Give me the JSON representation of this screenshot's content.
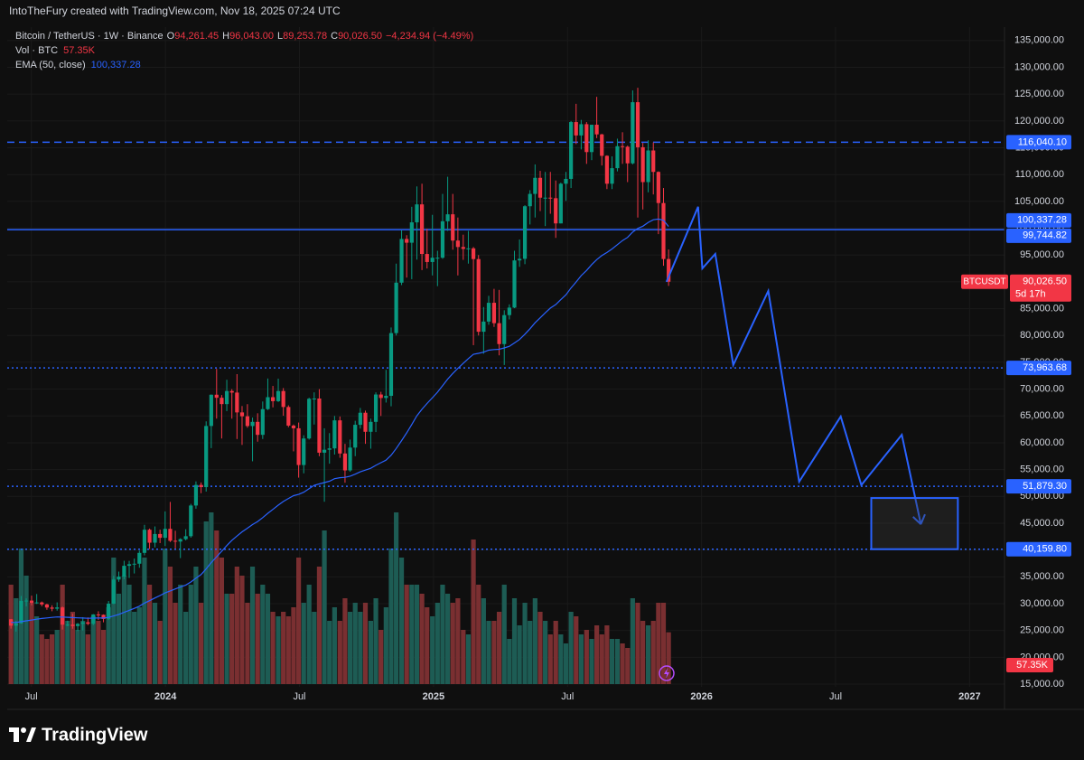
{
  "header": {
    "credit": "IntoTheFury created with TradingView.com, Nov 18, 2025 07:24 UTC"
  },
  "footer": {
    "brand": "TradingView"
  },
  "chart_data": {
    "type": "candlestick",
    "symbol": "Bitcoin / TetherUS · 1W · Binance",
    "ohlc": [
      {
        "key": "O",
        "value": "94,261.45"
      },
      {
        "key": "H",
        "value": "96,043.00"
      },
      {
        "key": "L",
        "value": "89,253.78"
      },
      {
        "key": "C",
        "value": "90,026.50"
      }
    ],
    "change": "−4,234.94 (−4.49%)",
    "up_color": "#089981",
    "down_color": "#f23645",
    "x": [
      2023.424,
      2023.443,
      2023.462,
      2023.481,
      2023.501,
      2023.52,
      2023.539,
      2023.558,
      2023.577,
      2023.596,
      2023.616,
      2023.635,
      2023.654,
      2023.673,
      2023.692,
      2023.711,
      2023.731,
      2023.75,
      2023.769,
      2023.788,
      2023.807,
      2023.826,
      2023.846,
      2023.865,
      2023.884,
      2023.903,
      2023.922,
      2023.941,
      2023.961,
      2023.98,
      2023.999,
      2024.018,
      2024.037,
      2024.056,
      2024.076,
      2024.095,
      2024.114,
      2024.133,
      2024.152,
      2024.171,
      2024.191,
      2024.21,
      2024.229,
      2024.248,
      2024.267,
      2024.286,
      2024.306,
      2024.325,
      2024.344,
      2024.363,
      2024.382,
      2024.401,
      2024.421,
      2024.44,
      2024.459,
      2024.478,
      2024.497,
      2024.516,
      2024.536,
      2024.555,
      2024.574,
      2024.593,
      2024.612,
      2024.631,
      2024.651,
      2024.67,
      2024.689,
      2024.708,
      2024.727,
      2024.746,
      2024.766,
      2024.785,
      2024.804,
      2024.823,
      2024.842,
      2024.861,
      2024.881,
      2024.9,
      2024.919,
      2024.938,
      2024.957,
      2024.976,
      2024.996,
      2025.015,
      2025.034,
      2025.053,
      2025.072,
      2025.091,
      2025.111,
      2025.13,
      2025.149,
      2025.168,
      2025.187,
      2025.206,
      2025.226,
      2025.245,
      2025.264,
      2025.283,
      2025.302,
      2025.321,
      2025.341,
      2025.36,
      2025.379,
      2025.398,
      2025.417,
      2025.436,
      2025.456,
      2025.475,
      2025.494,
      2025.513,
      2025.532,
      2025.551,
      2025.571,
      2025.59,
      2025.609,
      2025.628,
      2025.647,
      2025.666,
      2025.686,
      2025.705,
      2025.724,
      2025.743,
      2025.762,
      2025.781,
      2025.801,
      2025.82,
      2025.839,
      2025.858,
      2025.877
    ],
    "open": [
      27100,
      25900,
      26340,
      30540,
      30580,
      30160,
      30230,
      29860,
      29280,
      29060,
      29300,
      26090,
      26090,
      25830,
      26230,
      26530,
      26250,
      27990,
      27930,
      27150,
      30000,
      34500,
      35040,
      37060,
      37360,
      37450,
      39470,
      43790,
      41370,
      42990,
      42280,
      43950,
      41730,
      41580,
      42030,
      42580,
      48300,
      52140,
      51730,
      63130,
      68960,
      68390,
      67210,
      69650,
      69360,
      65660,
      64940,
      63120,
      63900,
      61480,
      66270,
      68500,
      67760,
      69650,
      66670,
      63200,
      62700,
      55850,
      60800,
      68200,
      68250,
      58150,
      58700,
      58950,
      64180,
      58000,
      54850,
      59100,
      63350,
      65600,
      62050,
      63900,
      69000,
      68350,
      68750,
      80450,
      89850,
      98000,
      97300,
      101100,
      104450,
      95200,
      93700,
      94500,
      94500,
      101300,
      102600,
      97700,
      96500,
      96150,
      96250,
      94250,
      80700,
      82600,
      86100,
      82300,
      78400,
      83800,
      85200,
      94000,
      94300,
      104100,
      106400,
      109400,
      105700,
      105700,
      105600,
      100900,
      108300,
      109200,
      119800,
      117300,
      119400,
      114200,
      119300,
      117500,
      113500,
      108300,
      111200,
      115300,
      115200,
      112100,
      123500,
      115100,
      108600,
      114500,
      110500,
      104700,
      94261.45
    ],
    "high": [
      27150,
      26800,
      31430,
      31000,
      31500,
      31800,
      30400,
      29990,
      29700,
      30250,
      29460,
      26830,
      28140,
      26400,
      27480,
      27440,
      28050,
      28580,
      28000,
      30500,
      35200,
      35980,
      38000,
      37980,
      38420,
      39900,
      44700,
      44000,
      44400,
      43800,
      47200,
      48970,
      43600,
      42200,
      43880,
      48600,
      52800,
      52600,
      64000,
      69000,
      73780,
      68900,
      71750,
      70000,
      72800,
      66850,
      67200,
      64700,
      65500,
      67700,
      71980,
      70600,
      71950,
      70200,
      66980,
      63400,
      63770,
      61400,
      68400,
      69400,
      70000,
      62700,
      61800,
      65000,
      64900,
      59800,
      60600,
      64100,
      66500,
      66000,
      64500,
      69400,
      69500,
      73600,
      81500,
      93400,
      99600,
      98700,
      104000,
      107800,
      108300,
      99900,
      102500,
      95800,
      106400,
      109600,
      106400,
      102000,
      98800,
      99500,
      96500,
      95000,
      85300,
      87400,
      88700,
      88500,
      84700,
      85800,
      95800,
      97900,
      104300,
      107100,
      111900,
      110700,
      110500,
      110500,
      108900,
      108500,
      110500,
      120000,
      123200,
      120200,
      119800,
      119300,
      124500,
      117600,
      113600,
      113400,
      116700,
      117900,
      115400,
      125700,
      126200,
      115900,
      116400,
      116000,
      110600,
      107500,
      96043
    ],
    "low": [
      25350,
      24800,
      26250,
      29500,
      29700,
      29950,
      29520,
      28860,
      28590,
      28700,
      25170,
      25800,
      25330,
      24900,
      25000,
      26000,
      26000,
      26970,
      26530,
      26950,
      29900,
      34080,
      34530,
      34800,
      35630,
      36700,
      39000,
      40200,
      40500,
      41300,
      40750,
      41500,
      40300,
      38500,
      41800,
      42300,
      47700,
      50600,
      50900,
      59000,
      64500,
      60800,
      65900,
      64500,
      60700,
      59600,
      62800,
      56550,
      60200,
      60700,
      66100,
      66600,
      67600,
      65050,
      62900,
      58400,
      53500,
      54300,
      60600,
      63400,
      57500,
      49000,
      56100,
      57800,
      57200,
      52550,
      54600,
      57500,
      62650,
      59800,
      58900,
      62000,
      65000,
      67500,
      66800,
      80000,
      89400,
      90800,
      90500,
      94150,
      92200,
      92500,
      91200,
      89200,
      94300,
      99500,
      96000,
      91200,
      94100,
      93400,
      78200,
      80000,
      76600,
      82000,
      81600,
      76300,
      74500,
      83000,
      85100,
      92800,
      93300,
      100700,
      102000,
      103200,
      100400,
      102700,
      98200,
      100900,
      105100,
      107500,
      115700,
      114700,
      112000,
      112700,
      116800,
      111700,
      107300,
      107300,
      110600,
      112000,
      108600,
      111900,
      102000,
      103500,
      106700,
      106300,
      98900,
      93000,
      89253.78
    ],
    "close": [
      25900,
      26340,
      30540,
      30580,
      30160,
      30230,
      29860,
      29280,
      29060,
      29300,
      26090,
      26090,
      25830,
      26230,
      26530,
      26250,
      27990,
      27930,
      27150,
      30000,
      34500,
      35040,
      37060,
      37360,
      37450,
      39470,
      43790,
      41370,
      42990,
      42280,
      43950,
      41730,
      41580,
      42030,
      42580,
      48300,
      52140,
      51730,
      63130,
      68960,
      68390,
      67210,
      69650,
      69360,
      65660,
      64940,
      63120,
      63900,
      61480,
      66270,
      68500,
      67760,
      69650,
      66670,
      63200,
      62700,
      55850,
      60800,
      68200,
      68250,
      58150,
      58700,
      58950,
      64180,
      58000,
      54850,
      59100,
      63350,
      65600,
      62050,
      63900,
      69000,
      68350,
      68750,
      80450,
      89850,
      98000,
      97300,
      101100,
      104450,
      95200,
      93700,
      94500,
      94500,
      101300,
      102600,
      97700,
      96500,
      96150,
      96250,
      94250,
      80700,
      82600,
      86100,
      82300,
      78400,
      83800,
      85200,
      94000,
      94300,
      104100,
      106400,
      109400,
      105700,
      105700,
      105600,
      100900,
      108300,
      109200,
      119800,
      117300,
      119400,
      114200,
      119300,
      117500,
      113500,
      108300,
      111200,
      115300,
      115200,
      112100,
      123500,
      115100,
      108600,
      114500,
      110500,
      104700,
      94261.45,
      90026.5
    ],
    "volume": {
      "name": "Vol · BTC",
      "last_label": "57.35K",
      "up_color": "#1d5c54",
      "down_color": "#7a2f31",
      "values": [
        110,
        95,
        150,
        120,
        90,
        75,
        55,
        50,
        55,
        60,
        110,
        70,
        80,
        60,
        70,
        55,
        75,
        70,
        60,
        85,
        140,
        100,
        120,
        110,
        80,
        85,
        140,
        110,
        90,
        70,
        150,
        130,
        90,
        110,
        80,
        110,
        130,
        90,
        180,
        190,
        170,
        140,
        100,
        100,
        130,
        120,
        90,
        130,
        100,
        110,
        100,
        80,
        75,
        80,
        75,
        85,
        140,
        90,
        110,
        80,
        130,
        170,
        70,
        85,
        70,
        95,
        80,
        90,
        80,
        90,
        70,
        95,
        60,
        85,
        150,
        190,
        140,
        110,
        110,
        110,
        100,
        85,
        75,
        90,
        110,
        100,
        90,
        95,
        60,
        55,
        160,
        110,
        95,
        70,
        70,
        80,
        110,
        50,
        95,
        65,
        90,
        70,
        95,
        80,
        70,
        55,
        70,
        55,
        45,
        80,
        75,
        55,
        60,
        50,
        65,
        55,
        65,
        50,
        50,
        45,
        40,
        95,
        90,
        70,
        65,
        70,
        90,
        90,
        57.35
      ]
    },
    "ema": {
      "name": "EMA (50, close)",
      "color": "#2962ff",
      "last_label": "100,337.28",
      "values": [
        26500,
        26500,
        26650,
        26800,
        26950,
        27100,
        27230,
        27340,
        27440,
        27530,
        27500,
        27450,
        27400,
        27360,
        27330,
        27280,
        27310,
        27340,
        27330,
        27440,
        27710,
        28000,
        28380,
        28760,
        29120,
        29530,
        30100,
        30560,
        31060,
        31510,
        32000,
        32380,
        32740,
        33110,
        33470,
        34050,
        34760,
        35420,
        36490,
        37650,
        38750,
        39780,
        40830,
        41820,
        42600,
        43390,
        44070,
        44750,
        45310,
        46050,
        46850,
        47580,
        48370,
        49050,
        49620,
        50140,
        50370,
        50770,
        51440,
        52080,
        52320,
        52580,
        52830,
        53300,
        53490,
        53550,
        53770,
        54140,
        54590,
        54900,
        55250,
        55790,
        56280,
        56760,
        57690,
        58940,
        60420,
        61840,
        63390,
        65030,
        66240,
        67330,
        68400,
        69430,
        70640,
        71880,
        72920,
        73880,
        74800,
        75700,
        76500,
        76670,
        76900,
        77260,
        77380,
        77430,
        77680,
        77980,
        78620,
        79250,
        80240,
        81260,
        82370,
        83300,
        84220,
        85110,
        85770,
        86680,
        87590,
        88850,
        89990,
        91160,
        92120,
        93220,
        94150,
        94910,
        95470,
        96140,
        96950,
        97710,
        98300,
        99310,
        99960,
        100380,
        101090,
        101580,
        101720,
        101480,
        100337.28
      ]
    },
    "last_price": {
      "tag": "BTCUSDT",
      "value": 90026.5,
      "label": "90,026.50",
      "countdown": "5d 17h",
      "color": "#f23645"
    },
    "levels": [
      {
        "value": 116040.1,
        "label": "116,040.10",
        "style": "dashed"
      },
      {
        "value": 99744.82,
        "label": "99,744.82",
        "style": "solid"
      },
      {
        "value": 73963.68,
        "label": "73,963.68",
        "style": "dotted"
      },
      {
        "value": 51879.3,
        "label": "51,879.30",
        "style": "dotted"
      },
      {
        "value": 40159.8,
        "label": "40,159.80",
        "style": "dotted"
      }
    ],
    "level_color": "#2962ff",
    "projection": {
      "color": "#2962ff",
      "x": [
        2025.869,
        2025.987,
        2026.003,
        2026.051,
        2026.118,
        2026.249,
        2026.364,
        2026.519,
        2026.596,
        2026.747,
        2026.818
      ],
      "values": [
        90000,
        104000,
        92500,
        95200,
        74500,
        88300,
        52750,
        64900,
        52100,
        61500,
        44800
      ]
    },
    "target_box": {
      "x": [
        2026.633,
        2026.956
      ],
      "y": [
        40159.8,
        49700
      ]
    },
    "xlim": [
      2023.41,
      2027.13
    ],
    "xticks": [
      {
        "value": 2023.5,
        "label": "Jul"
      },
      2024,
      {
        "value": 2024.5,
        "label": "Jul"
      },
      2025,
      {
        "value": 2025.5,
        "label": "Jul"
      },
      2026,
      {
        "value": 2026.5,
        "label": "Jul"
      },
      2027
    ],
    "ylim": [
      14500,
      137500
    ],
    "yticks": [
      {
        "value": 15000,
        "label": "15,000.00"
      },
      {
        "value": 20000,
        "label": "20,000.00"
      },
      {
        "value": 25000,
        "label": "25,000.00"
      },
      {
        "value": 30000,
        "label": "30,000.00"
      },
      {
        "value": 35000,
        "label": "35,000.00"
      },
      {
        "value": 40000,
        "label": "40,000.00"
      },
      {
        "value": 45000,
        "label": "45,000.00"
      },
      {
        "value": 50000,
        "label": "50,000.00"
      },
      {
        "value": 55000,
        "label": "55,000.00"
      },
      {
        "value": 60000,
        "label": "60,000.00"
      },
      {
        "value": 65000,
        "label": "65,000.00"
      },
      {
        "value": 70000,
        "label": "70,000.00"
      },
      {
        "value": 75000,
        "label": "75,000.00"
      },
      {
        "value": 80000,
        "label": "80,000.00"
      },
      {
        "value": 85000,
        "label": "85,000.00"
      },
      {
        "value": 90000,
        "label": "90,000.00"
      },
      {
        "value": 95000,
        "label": "95,000.00"
      },
      {
        "value": 100000,
        "label": "100,000.00"
      },
      {
        "value": 105000,
        "label": "105,000.00"
      },
      {
        "value": 110000,
        "label": "110,000.00"
      },
      {
        "value": 115000,
        "label": "115,000.00"
      },
      {
        "value": 120000,
        "label": "120,000.00"
      },
      {
        "value": 125000,
        "label": "125,000.00"
      },
      {
        "value": 130000,
        "label": "130,000.00"
      },
      {
        "value": 135000,
        "label": "135,000.00"
      }
    ],
    "grid": true
  }
}
